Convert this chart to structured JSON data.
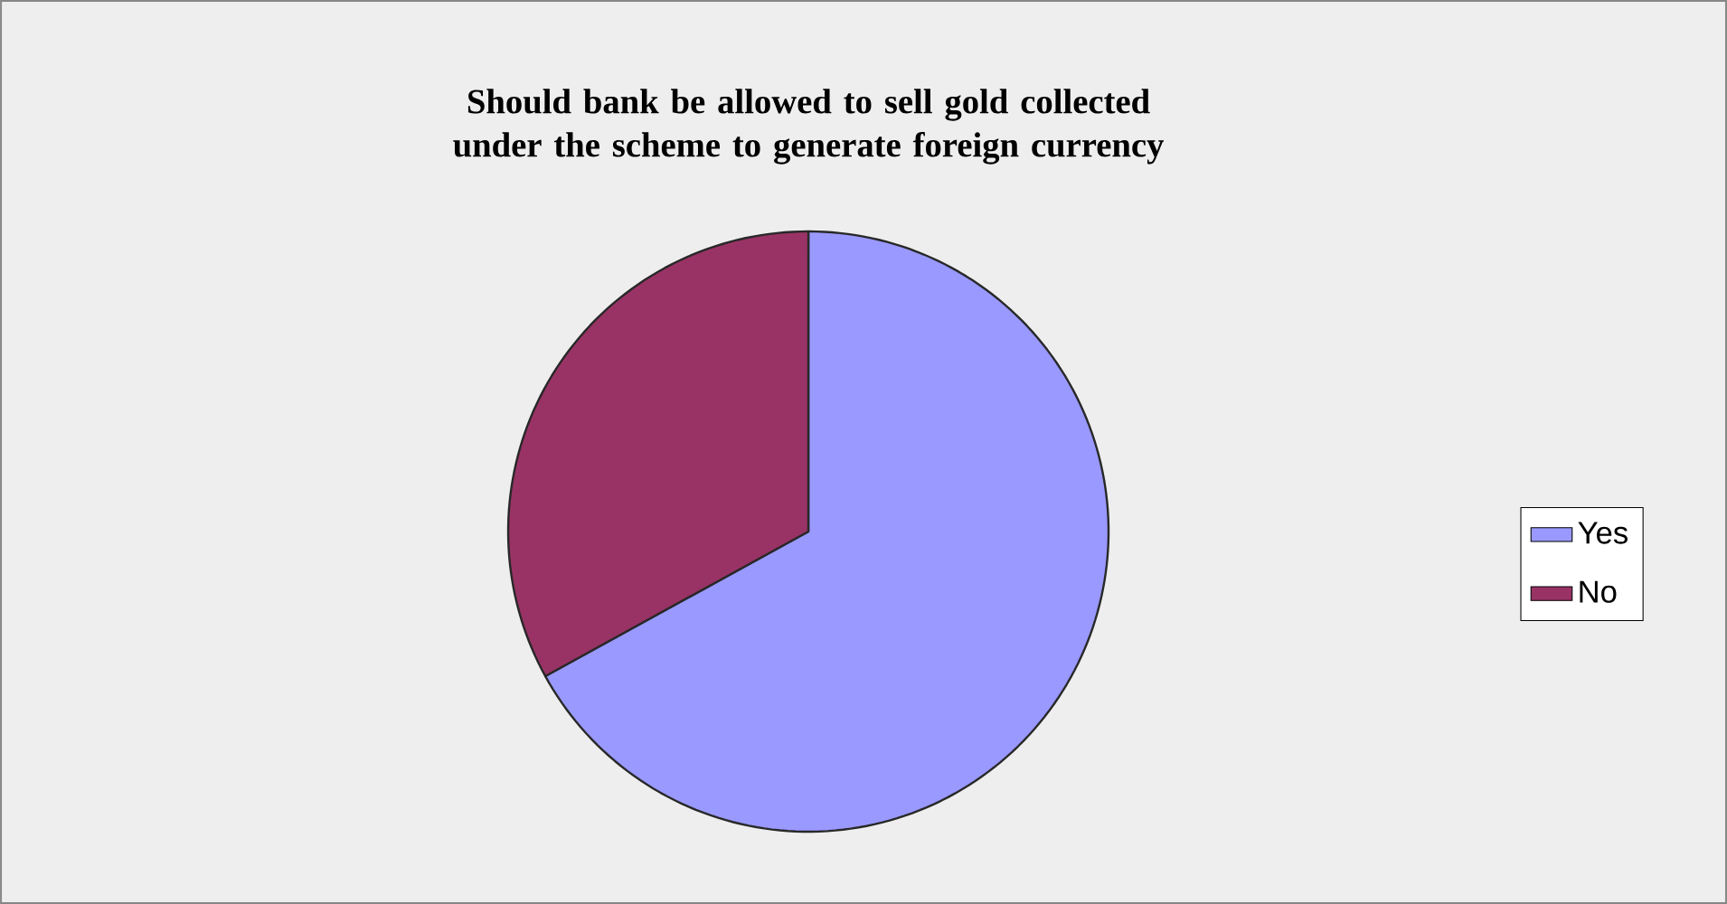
{
  "chart_data": {
    "type": "pie",
    "title": "Should bank be allowed to sell gold collected under the scheme to generate foreign currency",
    "categories": [
      "Yes",
      "No"
    ],
    "values": [
      67,
      33
    ],
    "colors": [
      "#9999ff",
      "#993366"
    ],
    "legend": "right"
  }
}
